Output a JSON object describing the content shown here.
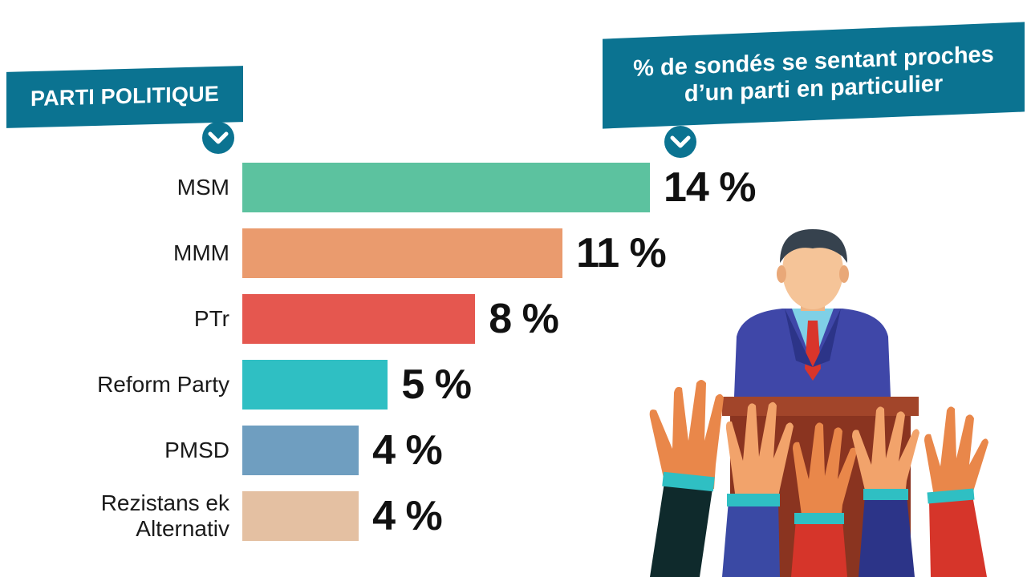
{
  "header": {
    "left_title": "PARTI POLITIQUE",
    "right_title_line1": "% de sondés se sentant proches",
    "right_title_line2": "d’un parti en particulier"
  },
  "icons": {
    "left": "chevron-down-icon",
    "right": "chevron-down-icon",
    "illustration": "politician-podium-raised-hands-illustration"
  },
  "chart_data": {
    "type": "bar",
    "orientation": "horizontal",
    "title": "% de sondés se sentant proches d’un parti en particulier",
    "category_axis_label": "PARTI POLITIQUE",
    "unit": "%",
    "xlim": [
      0,
      14
    ],
    "categories": [
      "MSM",
      "MMM",
      "PTr",
      "Reform Party",
      "PMSD",
      "Rezistans ek Alternativ"
    ],
    "label_lines": [
      [
        "MSM"
      ],
      [
        "MMM"
      ],
      [
        "PTr"
      ],
      [
        "Reform Party"
      ],
      [
        "PMSD"
      ],
      [
        "Rezistans ek",
        "Alternativ"
      ]
    ],
    "values": [
      14,
      11,
      8,
      5,
      4,
      4
    ],
    "value_labels": [
      "14 %",
      "11 %",
      "8 %",
      "5 %",
      "4 %",
      "4 %"
    ],
    "colors": [
      "#5cc29f",
      "#ea9b6e",
      "#e5574f",
      "#2fbfc3",
      "#6f9ec0",
      "#e4c0a2"
    ]
  }
}
